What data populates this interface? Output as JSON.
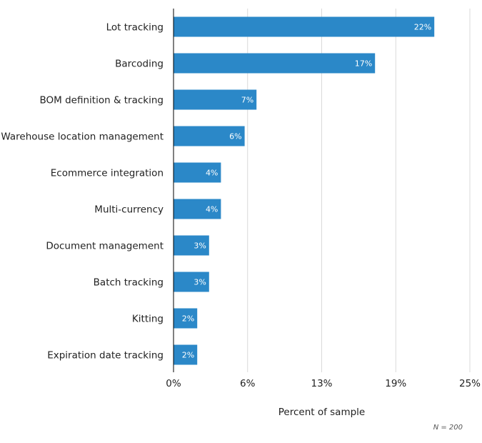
{
  "chart_data": {
    "type": "bar",
    "orientation": "horizontal",
    "categories": [
      "Lot tracking",
      "Barcoding",
      "BOM definition & tracking",
      "Warehouse location management",
      "Ecommerce integration",
      "Multi-currency",
      "Document management",
      "Batch tracking",
      "Kitting",
      "Expiration date tracking"
    ],
    "values": [
      22,
      17,
      7,
      6,
      4,
      4,
      3,
      3,
      2,
      2
    ],
    "value_labels": [
      "22%",
      "17%",
      "7%",
      "6%",
      "4%",
      "4%",
      "3%",
      "3%",
      "2%",
      "2%"
    ],
    "xlabel": "Percent of sample",
    "ylabel": "",
    "xlim": [
      0,
      25
    ],
    "xticks": [
      0,
      6.25,
      12.5,
      18.75,
      25
    ],
    "xtick_labels": [
      "0%",
      "6%",
      "13%",
      "19%",
      "25%"
    ],
    "grid": true,
    "bar_color": "#2b88c8",
    "note": "N = 200"
  }
}
